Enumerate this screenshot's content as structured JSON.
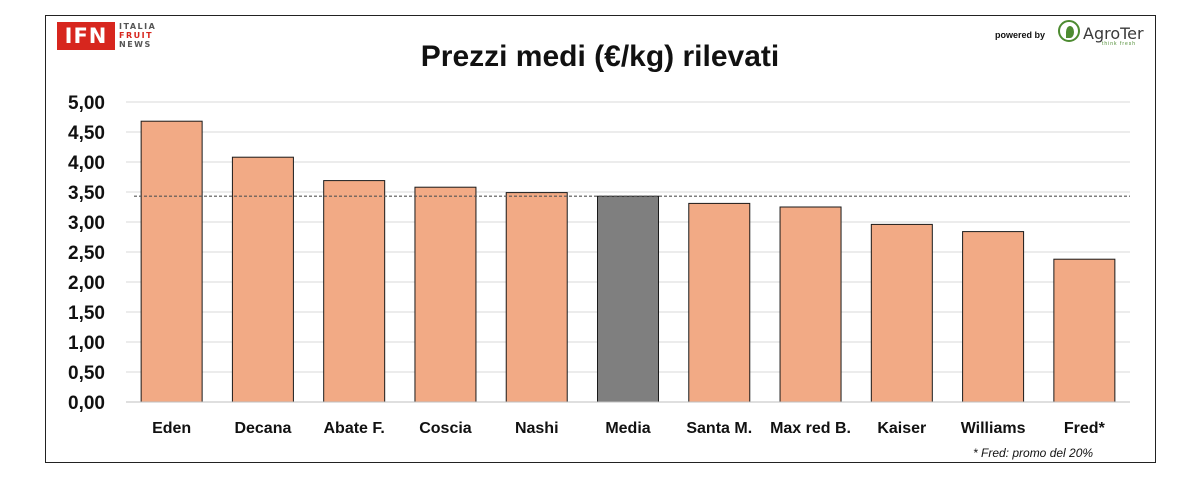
{
  "logo_ifn": {
    "main": "IFN",
    "line1": "ITALIA",
    "line2": "FRUIT",
    "line3": "NEWS"
  },
  "powered_by": "powered by",
  "logo_agroter": {
    "name": "AgroTer",
    "tagline": "think fresh"
  },
  "footnote": "* Fred: promo del 20%",
  "colors": {
    "bar": "#f2aa85",
    "bar_highlight": "#7f7f7f",
    "bar_stroke": "#1a1a1a",
    "grid": "#d9d9d9",
    "reference_line": "#555555"
  },
  "chart_data": {
    "type": "bar",
    "title": "Prezzi medi (€/kg) rilevati",
    "xlabel": "",
    "ylabel": "",
    "categories": [
      "Eden",
      "Decana",
      "Abate F.",
      "Coscia",
      "Nashi",
      "Media",
      "Santa M.",
      "Max red B.",
      "Kaiser",
      "Williams",
      "Fred*"
    ],
    "values": [
      4.68,
      4.08,
      3.69,
      3.58,
      3.49,
      3.43,
      3.31,
      3.25,
      2.96,
      2.84,
      2.38
    ],
    "highlight_category": "Media",
    "reference_line": 3.43,
    "ylim": [
      0,
      5
    ],
    "yticks": [
      "0,00",
      "0,50",
      "1,00",
      "1,50",
      "2,00",
      "2,50",
      "3,00",
      "3,50",
      "4,00",
      "4,50",
      "5,00"
    ],
    "grid": true,
    "legend": "none"
  }
}
